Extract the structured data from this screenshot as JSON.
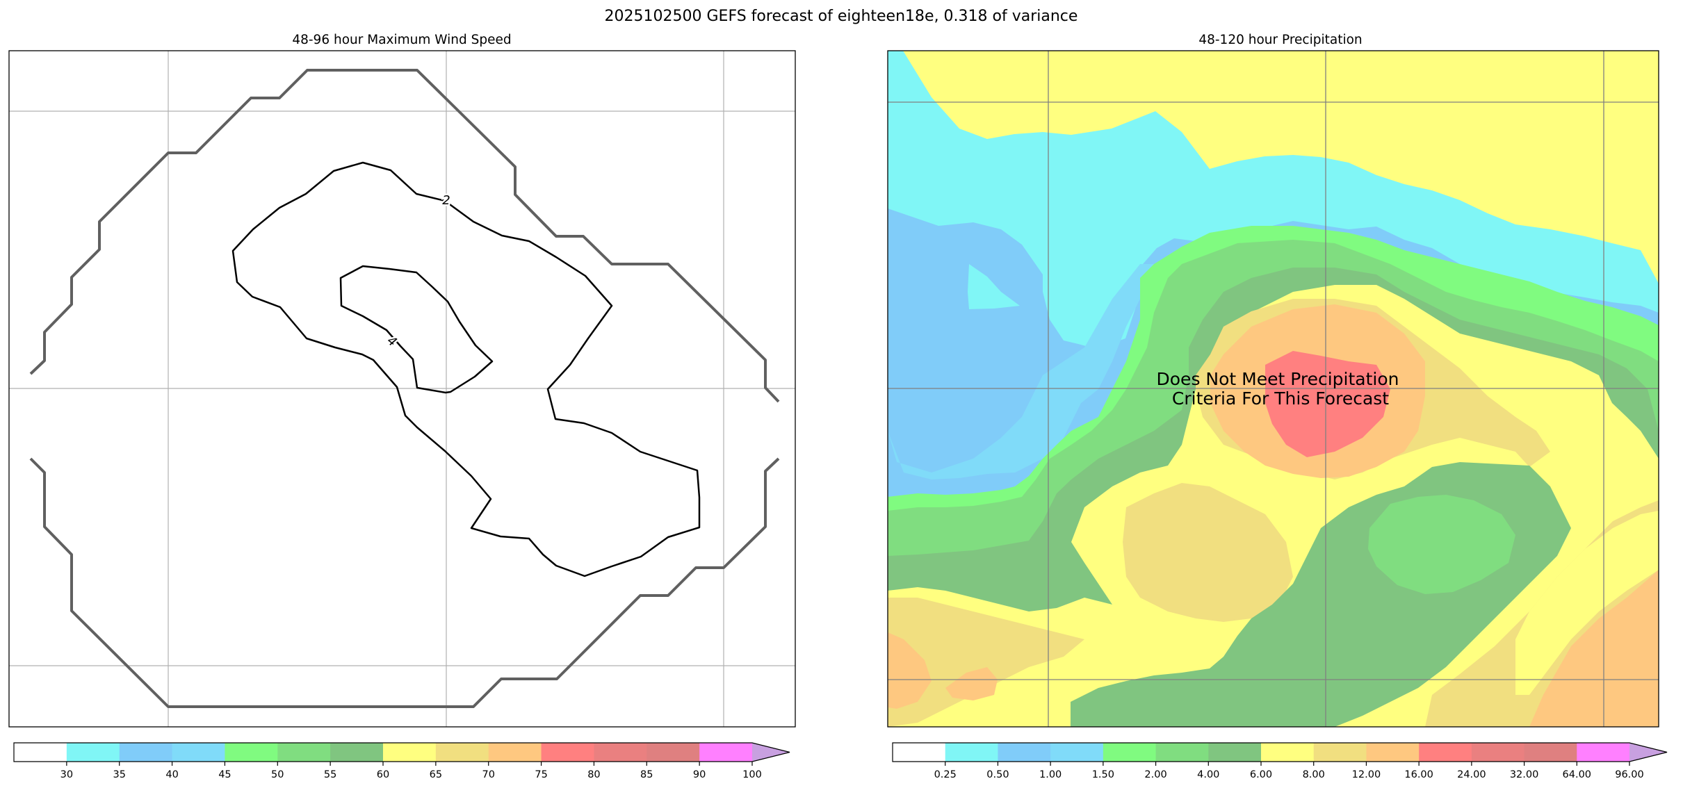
{
  "figure": {
    "suptitle": "2025102500 GEFS forecast of eighteen18e, 0.318 of variance"
  },
  "chart_data": [
    {
      "type": "contour",
      "title": "48-96 hour Maximum Wind Speed",
      "grid": true,
      "contour_labels": [
        "2",
        "4"
      ],
      "colorbar": {
        "ticks": [
          "30",
          "35",
          "40",
          "45",
          "50",
          "55",
          "60",
          "65",
          "70",
          "75",
          "80",
          "85",
          "90",
          "100"
        ],
        "colors": [
          "#ffffff",
          "#80f6f6",
          "#80ccf9",
          "#80dbf9",
          "#80fb80",
          "#80dd80",
          "#80c580",
          "#ffff80",
          "#f1df80",
          "#fec880",
          "#ff8080",
          "#ea8080",
          "#df8080",
          "#ff80ff",
          "#c8a0e0"
        ],
        "extend": "max"
      }
    },
    {
      "type": "filled-contour",
      "title": "48-120 hour Precipitation",
      "grid": true,
      "annotation": "Does Not Meet Precipitation Criteria For This Forecast",
      "colorbar": {
        "ticks": [
          "0.25",
          "0.50",
          "1.00",
          "1.50",
          "2.00",
          "4.00",
          "6.00",
          "8.00",
          "12.00",
          "16.00",
          "24.00",
          "32.00",
          "64.00",
          "96.00"
        ],
        "colors": [
          "#ffffff",
          "#80f6f6",
          "#80ccf9",
          "#80dbf9",
          "#80fb80",
          "#80dd80",
          "#80c580",
          "#ffff80",
          "#f1df80",
          "#fec880",
          "#ff8080",
          "#ea8080",
          "#df8080",
          "#ff80ff",
          "#c8a0e0"
        ],
        "extend": "max"
      }
    }
  ]
}
